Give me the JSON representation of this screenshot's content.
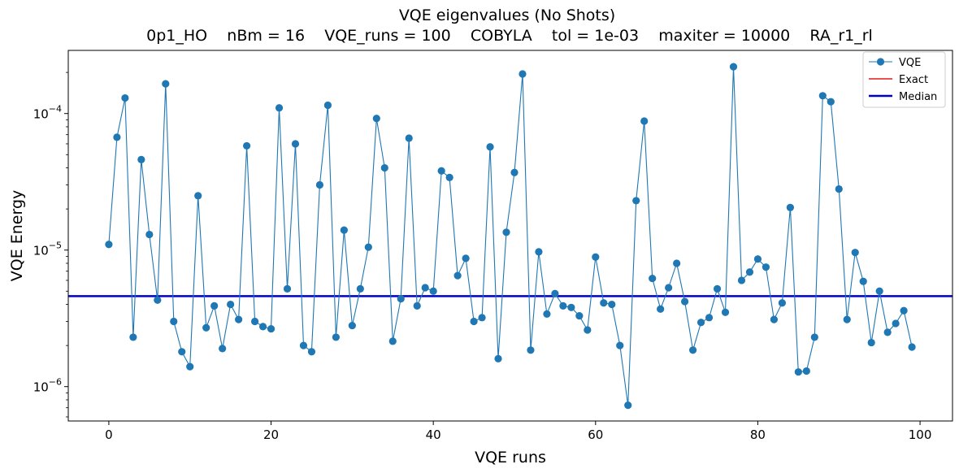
{
  "chart_data": {
    "type": "line",
    "title": "VQE eigenvalues (No Shots)",
    "subtitle": "0p1_HO    nBm = 16    VQE_runs = 100    COBYLA    tol = 1e-03    maxiter = 10000    RA_r1_rl",
    "xlabel": "VQE runs",
    "ylabel": "VQE Energy",
    "yscale": "log",
    "xlim": [
      -5,
      104
    ],
    "ylim": [
      5.6e-07,
      0.00029
    ],
    "x_ticks": [
      0,
      20,
      40,
      60,
      80,
      100
    ],
    "x_tick_labels": [
      "0",
      "20",
      "40",
      "60",
      "80",
      "100"
    ],
    "y_ticks": [
      1e-06,
      1e-05,
      0.0001
    ],
    "y_tick_labels": [
      {
        "base": "10",
        "exp": "−6"
      },
      {
        "base": "10",
        "exp": "−5"
      },
      {
        "base": "10",
        "exp": "−4"
      }
    ],
    "grid": false,
    "legend_position": "top-right",
    "legend": [
      {
        "label": "VQE",
        "color": "#1f77b4",
        "style": "line-marker"
      },
      {
        "label": "Exact",
        "color": "#e41a1c",
        "style": "line"
      },
      {
        "label": "Median",
        "color": "#0000cc",
        "style": "thick-line"
      }
    ],
    "series": [
      {
        "name": "VQE",
        "color": "#1f77b4",
        "x": [
          0,
          1,
          2,
          3,
          4,
          5,
          6,
          7,
          8,
          9,
          10,
          11,
          12,
          13,
          14,
          15,
          16,
          17,
          18,
          19,
          20,
          21,
          22,
          23,
          24,
          25,
          26,
          27,
          28,
          29,
          30,
          31,
          32,
          33,
          34,
          35,
          36,
          37,
          38,
          39,
          40,
          41,
          42,
          43,
          44,
          45,
          46,
          47,
          48,
          49,
          50,
          51,
          52,
          53,
          54,
          55,
          56,
          57,
          58,
          59,
          60,
          61,
          62,
          63,
          64,
          65,
          66,
          67,
          68,
          69,
          70,
          71,
          72,
          73,
          74,
          75,
          76,
          77,
          78,
          79,
          80,
          81,
          82,
          83,
          84,
          85,
          86,
          87,
          88,
          89,
          90,
          91,
          92,
          93,
          94,
          95,
          96,
          97,
          98,
          99
        ],
        "values": [
          1.1e-05,
          6.7e-05,
          0.00013,
          2.3e-06,
          4.6e-05,
          1.3e-05,
          4.3e-06,
          0.000165,
          3e-06,
          1.8e-06,
          1.4e-06,
          2.5e-05,
          2.7e-06,
          3.9e-06,
          1.9e-06,
          4e-06,
          3.1e-06,
          5.8e-05,
          3e-06,
          2.75e-06,
          2.65e-06,
          0.00011,
          5.2e-06,
          6e-05,
          2e-06,
          1.8e-06,
          3e-05,
          0.000115,
          2.3e-06,
          1.4e-05,
          2.8e-06,
          5.2e-06,
          1.05e-05,
          9.2e-05,
          4e-05,
          2.15e-06,
          4.4e-06,
          6.6e-05,
          3.9e-06,
          5.3e-06,
          5e-06,
          3.8e-05,
          3.4e-05,
          6.5e-06,
          8.7e-06,
          3e-06,
          3.2e-06,
          5.7e-05,
          1.6e-06,
          1.35e-05,
          3.7e-05,
          0.000195,
          1.85e-06,
          9.7e-06,
          3.4e-06,
          4.8e-06,
          3.9e-06,
          3.8e-06,
          3.3e-06,
          2.6e-06,
          8.9e-06,
          4.1e-06,
          4e-06,
          2e-06,
          7.3e-07,
          2.3e-05,
          8.8e-05,
          6.2e-06,
          3.7e-06,
          5.3e-06,
          8e-06,
          4.2e-06,
          1.85e-06,
          2.95e-06,
          3.2e-06,
          5.2e-06,
          3.5e-06,
          0.00022,
          6e-06,
          6.9e-06,
          8.6e-06,
          7.5e-06,
          3.1e-06,
          4.1e-06,
          2.05e-05,
          1.28e-06,
          1.3e-06,
          2.3e-06,
          0.000135,
          0.000122,
          2.8e-05,
          3.1e-06,
          9.6e-06,
          5.9e-06,
          2.1e-06,
          5e-06,
          2.5e-06,
          2.9e-06,
          3.6e-06,
          1.95e-06
        ]
      },
      {
        "name": "Median",
        "color": "#0000cc",
        "value": 4.6e-06
      }
    ]
  }
}
